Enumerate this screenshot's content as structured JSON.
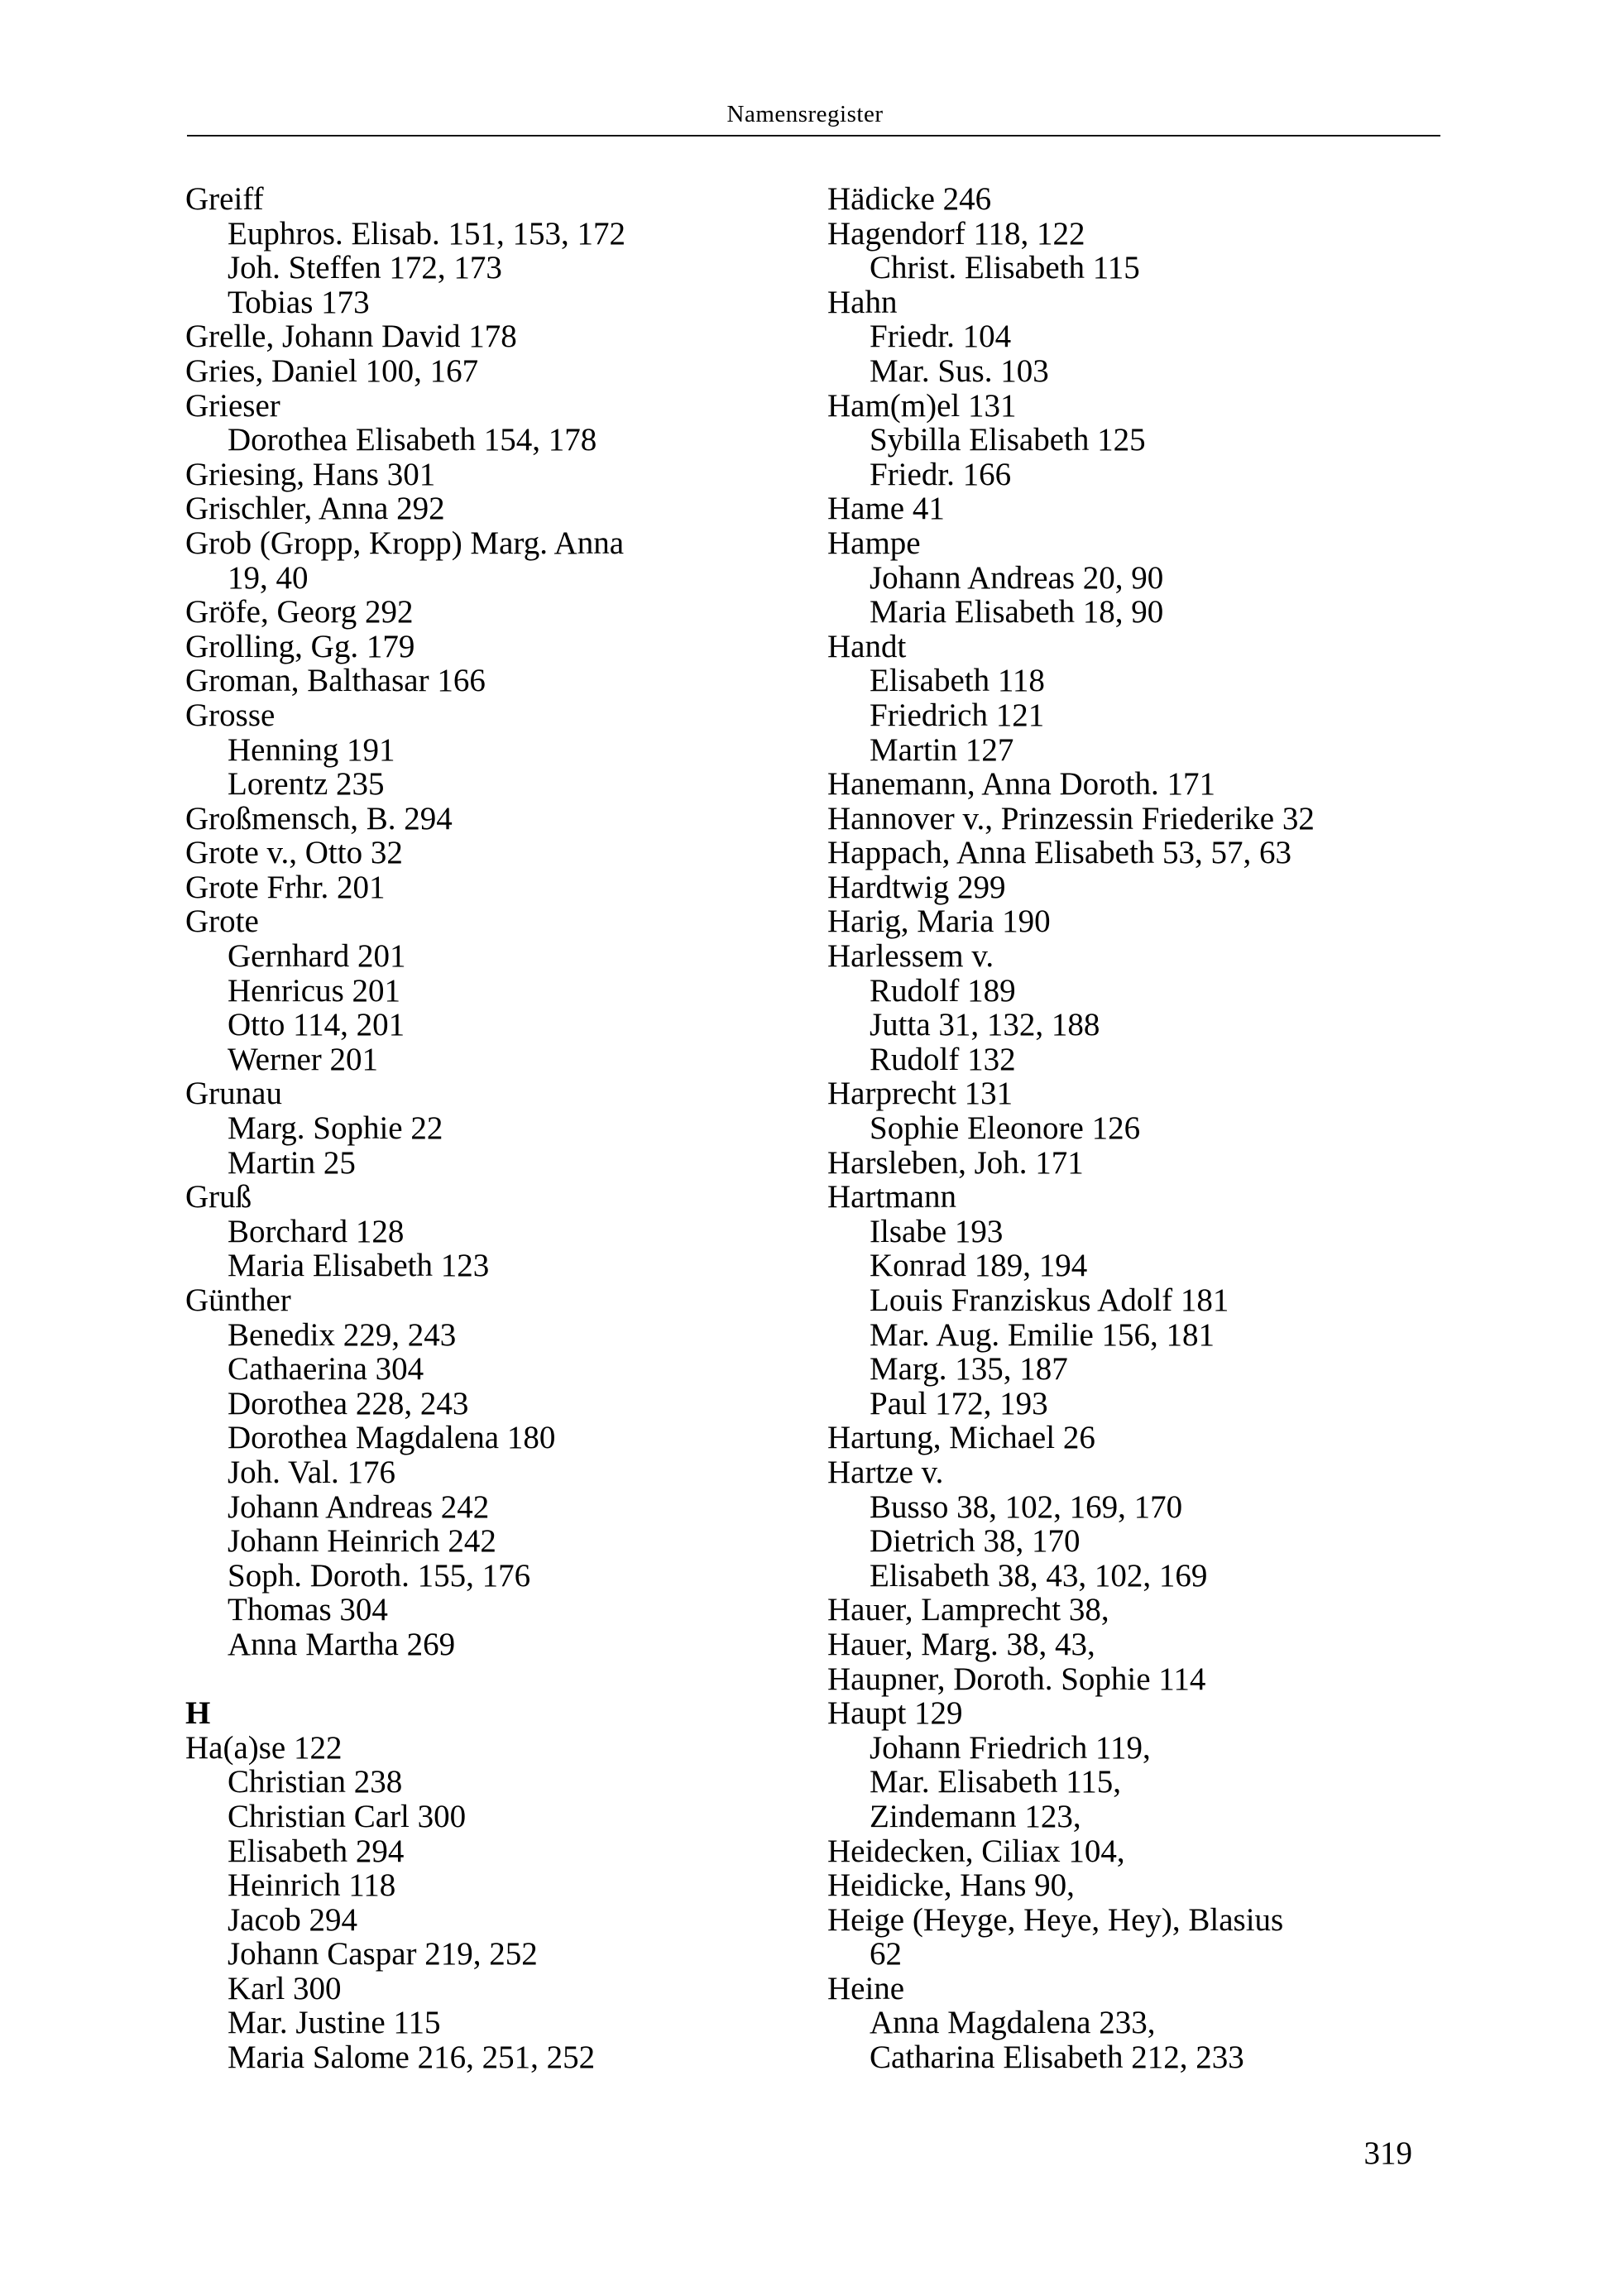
{
  "header": {
    "title": "Namensregister"
  },
  "footer": {
    "page_number": "319"
  },
  "colors": {
    "ink": "#000000",
    "paper": "#ffffff"
  },
  "index": {
    "left_column": [
      {
        "style": "main",
        "text": "Greiff"
      },
      {
        "style": "sub",
        "text": "Euphros. Elisab. 151, 153, 172"
      },
      {
        "style": "sub",
        "text": "Joh. Steffen 172, 173"
      },
      {
        "style": "sub",
        "text": "Tobias 173"
      },
      {
        "style": "main",
        "text": "Grelle, Johann David 178"
      },
      {
        "style": "main",
        "text": "Gries, Daniel 100, 167"
      },
      {
        "style": "main",
        "text": "Grieser"
      },
      {
        "style": "sub",
        "text": "Dorothea Elisabeth 154, 178"
      },
      {
        "style": "main",
        "text": "Griesing, Hans 301"
      },
      {
        "style": "main",
        "text": "Grischler, Anna 292"
      },
      {
        "style": "main",
        "text": "Grob (Gropp, Kropp) Marg. Anna"
      },
      {
        "style": "sub",
        "text": "19, 40"
      },
      {
        "style": "main",
        "text": "Gröfe, Georg 292"
      },
      {
        "style": "main",
        "text": "Grolling, Gg. 179"
      },
      {
        "style": "main",
        "text": "Groman, Balthasar 166"
      },
      {
        "style": "main",
        "text": "Grosse"
      },
      {
        "style": "sub",
        "text": "Henning 191"
      },
      {
        "style": "sub",
        "text": "Lorentz 235"
      },
      {
        "style": "main",
        "text": "Großmensch, B. 294"
      },
      {
        "style": "main",
        "text": "Grote v., Otto 32"
      },
      {
        "style": "main",
        "text": "Grote Frhr. 201"
      },
      {
        "style": "main",
        "text": "Grote"
      },
      {
        "style": "sub",
        "text": "Gernhard 201"
      },
      {
        "style": "sub",
        "text": "Henricus 201"
      },
      {
        "style": "sub",
        "text": "Otto 114, 201"
      },
      {
        "style": "sub",
        "text": "Werner 201"
      },
      {
        "style": "main",
        "text": "Grunau"
      },
      {
        "style": "sub",
        "text": "Marg. Sophie 22"
      },
      {
        "style": "sub",
        "text": "Martin 25"
      },
      {
        "style": "main",
        "text": "Gruß"
      },
      {
        "style": "sub",
        "text": "Borchard 128"
      },
      {
        "style": "sub",
        "text": "Maria Elisabeth 123"
      },
      {
        "style": "main",
        "text": "Günther"
      },
      {
        "style": "sub",
        "text": "Benedix 229, 243"
      },
      {
        "style": "sub",
        "text": "Cathaerina 304"
      },
      {
        "style": "sub",
        "text": "Dorothea 228, 243"
      },
      {
        "style": "sub",
        "text": "Dorothea Magdalena 180"
      },
      {
        "style": "sub",
        "text": "Joh. Val. 176"
      },
      {
        "style": "sub",
        "text": "Johann Andreas 242"
      },
      {
        "style": "sub",
        "text": "Johann Heinrich 242"
      },
      {
        "style": "sub",
        "text": "Soph. Doroth. 155, 176"
      },
      {
        "style": "sub",
        "text": "Thomas 304"
      },
      {
        "style": "sub",
        "text": "Anna Martha 269"
      },
      {
        "style": "blank",
        "text": ""
      },
      {
        "style": "heading",
        "text": "H"
      },
      {
        "style": "main",
        "text": "Ha(a)se 122"
      },
      {
        "style": "sub",
        "text": "Christian 238"
      },
      {
        "style": "sub",
        "text": "Christian Carl 300"
      },
      {
        "style": "sub",
        "text": "Elisabeth 294"
      },
      {
        "style": "sub",
        "text": "Heinrich 118"
      },
      {
        "style": "sub",
        "text": "Jacob 294"
      },
      {
        "style": "sub",
        "text": "Johann Caspar 219, 252"
      },
      {
        "style": "sub",
        "text": "Karl 300"
      },
      {
        "style": "sub",
        "text": "Mar. Justine 115"
      },
      {
        "style": "sub",
        "text": "Maria Salome 216, 251, 252"
      }
    ],
    "right_column": [
      {
        "style": "main",
        "text": "Hädicke 246"
      },
      {
        "style": "main",
        "text": "Hagendorf 118, 122"
      },
      {
        "style": "sub",
        "text": "Christ. Elisabeth 115"
      },
      {
        "style": "main",
        "text": "Hahn"
      },
      {
        "style": "sub",
        "text": "Friedr. 104"
      },
      {
        "style": "sub",
        "text": "Mar. Sus. 103"
      },
      {
        "style": "main",
        "text": "Ham(m)el 131"
      },
      {
        "style": "sub",
        "text": "Sybilla Elisabeth 125"
      },
      {
        "style": "sub",
        "text": "Friedr. 166"
      },
      {
        "style": "main",
        "text": "Hame 41"
      },
      {
        "style": "main",
        "text": "Hampe"
      },
      {
        "style": "sub",
        "text": "Johann Andreas 20, 90"
      },
      {
        "style": "sub",
        "text": "Maria Elisabeth 18, 90"
      },
      {
        "style": "main",
        "text": "Handt"
      },
      {
        "style": "sub",
        "text": "Elisabeth 118"
      },
      {
        "style": "sub",
        "text": "Friedrich 121"
      },
      {
        "style": "sub",
        "text": "Martin 127"
      },
      {
        "style": "main",
        "text": "Hanemann, Anna Doroth. 171"
      },
      {
        "style": "main",
        "text": "Hannover v., Prinzessin Friederike 32"
      },
      {
        "style": "main",
        "text": "Happach, Anna Elisabeth 53, 57, 63"
      },
      {
        "style": "main",
        "text": "Hardtwig 299"
      },
      {
        "style": "main",
        "text": "Harig, Maria 190"
      },
      {
        "style": "main",
        "text": "Harlessem v."
      },
      {
        "style": "sub",
        "text": "Rudolf 189"
      },
      {
        "style": "sub",
        "text": "Jutta 31, 132, 188"
      },
      {
        "style": "sub",
        "text": "Rudolf 132"
      },
      {
        "style": "main",
        "text": "Harprecht 131"
      },
      {
        "style": "sub",
        "text": "Sophie Eleonore 126"
      },
      {
        "style": "main",
        "text": "Harsleben, Joh. 171"
      },
      {
        "style": "main",
        "text": "Hartmann"
      },
      {
        "style": "sub",
        "text": "Ilsabe 193"
      },
      {
        "style": "sub",
        "text": "Konrad 189, 194"
      },
      {
        "style": "sub",
        "text": "Louis Franziskus Adolf 181"
      },
      {
        "style": "sub",
        "text": "Mar. Aug. Emilie 156, 181"
      },
      {
        "style": "sub",
        "text": "Marg. 135, 187"
      },
      {
        "style": "sub",
        "text": "Paul 172, 193"
      },
      {
        "style": "main",
        "text": "Hartung, Michael 26"
      },
      {
        "style": "main",
        "text": "Hartze v."
      },
      {
        "style": "sub",
        "text": "Busso 38, 102, 169, 170"
      },
      {
        "style": "sub",
        "text": "Dietrich 38, 170"
      },
      {
        "style": "sub",
        "text": "Elisabeth 38, 43, 102, 169"
      },
      {
        "style": "main",
        "text": "Hauer, Lamprecht 38,"
      },
      {
        "style": "main",
        "text": "Hauer, Marg. 38, 43,"
      },
      {
        "style": "main",
        "text": "Haupner, Doroth. Sophie 114"
      },
      {
        "style": "main",
        "text": "Haupt 129"
      },
      {
        "style": "sub",
        "text": "Johann Friedrich 119,"
      },
      {
        "style": "sub",
        "text": "Mar. Elisabeth 115,"
      },
      {
        "style": "sub",
        "text": "Zindemann 123,"
      },
      {
        "style": "main",
        "text": "Heidecken, Ciliax 104,"
      },
      {
        "style": "main",
        "text": "Heidicke, Hans 90,"
      },
      {
        "style": "main",
        "text": "Heige (Heyge, Heye, Hey), Blasius"
      },
      {
        "style": "sub",
        "text": "62"
      },
      {
        "style": "main",
        "text": "Heine"
      },
      {
        "style": "sub",
        "text": "Anna Magdalena 233,"
      },
      {
        "style": "sub",
        "text": "Catharina Elisabeth 212, 233"
      }
    ]
  }
}
